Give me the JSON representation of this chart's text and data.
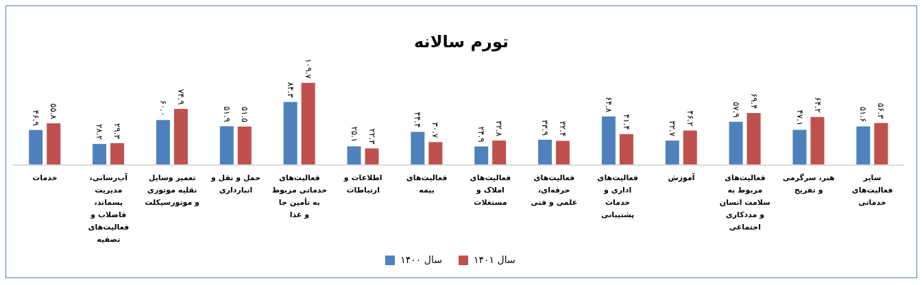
{
  "chart_data": {
    "type": "bar",
    "title": "تورم سالانه",
    "categories": [
      "خدمات",
      "آب‌رسانی، مدیریت پسماند، فاضلاب و فعالیت‌های تصفیه",
      "تعمیر وسایل نقلیه موتوری و موتورسیکلت",
      "حمل و نقل و انبارداری",
      "فعالیت‌های خدماتی مربوط به تأمین جا و غذا",
      "اطلاعات و ارتباطات",
      "فعالیت‌های بیمه",
      "فعالیت‌های املاک و مستغلات",
      "فعالیت‌های حرفه‌ای، علمی و فنی",
      "فعالیت‌های اداری و خدمات پشتیبانی",
      "آموزش",
      "فعالیت‌های مربوط به سلامت انسان و مددکاری اجتماعی",
      "هنر، سرگرمی و تفریح",
      "سایر فعالیت‌های خدماتی"
    ],
    "series": [
      {
        "name": "سال ۱۴۰۰",
        "color": "#4f81bd",
        "values": [
          46.9,
          28.2,
          60.0,
          51.9,
          84.3,
          25.1,
          44.4,
          24.9,
          33.9,
          64.8,
          32.7,
          57.9,
          47.1,
          51.6
        ],
        "value_labels": [
          "۴۶.۹",
          "۲۸.۲",
          "۶۰.۰",
          "۵۱.۹",
          "۸۴.۳",
          "۲۵.۱",
          "۴۴.۴",
          "۲۴.۹",
          "۳۳.۹",
          "۶۴.۸",
          "۳۲.۷",
          "۵۷.۹",
          "۴۷.۱",
          "۵۱.۶"
        ]
      },
      {
        "name": "سال ۱۴۰۱",
        "color": "#c0504d",
        "values": [
          55.8,
          29.3,
          74.9,
          51.5,
          109.7,
          22.3,
          30.7,
          32.8,
          32.4,
          41.4,
          46.2,
          69.4,
          64.2,
          56.3
        ],
        "value_labels": [
          "۵۵.۸",
          "۲۹.۳",
          "۷۴.۹",
          "۵۱.۵",
          "۱۰۹.۷",
          "۲۲.۳",
          "۳۰.۷",
          "۳۲.۸",
          "۳۲.۴",
          "۴۱.۴",
          "۴۶.۲",
          "۶۹.۴",
          "۶۴.۲",
          "۵۶.۳"
        ]
      }
    ],
    "legend": "bottom"
  }
}
